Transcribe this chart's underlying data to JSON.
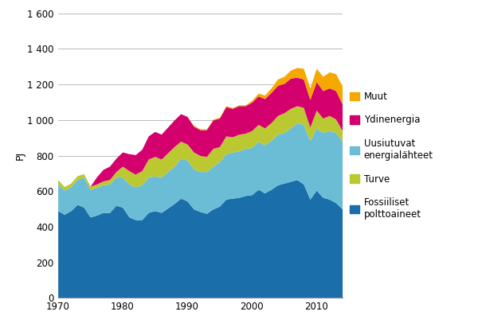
{
  "years": [
    1970,
    1971,
    1972,
    1973,
    1974,
    1975,
    1976,
    1977,
    1978,
    1979,
    1980,
    1981,
    1982,
    1983,
    1984,
    1985,
    1986,
    1987,
    1988,
    1989,
    1990,
    1991,
    1992,
    1993,
    1994,
    1995,
    1996,
    1997,
    1998,
    1999,
    2000,
    2001,
    2002,
    2003,
    2004,
    2005,
    2006,
    2007,
    2008,
    2009,
    2010,
    2011,
    2012,
    2013,
    2014
  ],
  "fossiiliset": [
    490,
    470,
    490,
    525,
    510,
    455,
    465,
    480,
    480,
    520,
    510,
    455,
    440,
    440,
    480,
    490,
    480,
    505,
    530,
    560,
    545,
    500,
    485,
    475,
    500,
    515,
    555,
    560,
    565,
    575,
    580,
    610,
    590,
    610,
    635,
    645,
    655,
    665,
    640,
    555,
    605,
    565,
    555,
    535,
    500
  ],
  "uusiutuvat": [
    150,
    135,
    135,
    140,
    170,
    155,
    155,
    155,
    160,
    160,
    170,
    185,
    185,
    195,
    200,
    195,
    200,
    205,
    210,
    225,
    230,
    225,
    225,
    235,
    240,
    250,
    255,
    260,
    260,
    265,
    265,
    270,
    270,
    275,
    285,
    285,
    300,
    320,
    335,
    330,
    350,
    365,
    385,
    395,
    380
  ],
  "turve": [
    25,
    20,
    20,
    22,
    18,
    18,
    20,
    22,
    25,
    30,
    60,
    75,
    70,
    80,
    100,
    110,
    100,
    105,
    110,
    95,
    90,
    95,
    90,
    85,
    100,
    85,
    100,
    85,
    95,
    85,
    95,
    95,
    95,
    100,
    105,
    110,
    110,
    95,
    95,
    75,
    100,
    80,
    85,
    75,
    60
  ],
  "ydinenergia": [
    0,
    0,
    0,
    0,
    0,
    0,
    40,
    65,
    75,
    75,
    80,
    95,
    110,
    120,
    130,
    140,
    140,
    145,
    150,
    155,
    155,
    145,
    145,
    150,
    160,
    160,
    165,
    160,
    160,
    155,
    160,
    160,
    165,
    170,
    170,
    165,
    170,
    160,
    160,
    155,
    160,
    155,
    155,
    160,
    150
  ],
  "muut": [
    0,
    0,
    0,
    0,
    0,
    0,
    0,
    0,
    0,
    0,
    0,
    0,
    0,
    0,
    0,
    0,
    0,
    0,
    0,
    0,
    0,
    5,
    5,
    5,
    5,
    5,
    5,
    5,
    5,
    5,
    10,
    15,
    20,
    25,
    35,
    40,
    45,
    55,
    60,
    65,
    75,
    80,
    90,
    95,
    100
  ],
  "color_fossiiliset": "#1a6fab",
  "color_uusiutuvat": "#6bbdd6",
  "color_turve": "#bcc832",
  "color_ydinenergia": "#d4006e",
  "color_muut": "#f5a800",
  "ylabel": "PJ",
  "ylim": [
    0,
    1600
  ],
  "yticks": [
    0,
    200,
    400,
    600,
    800,
    1000,
    1200,
    1400,
    1600
  ],
  "ytick_labels": [
    "0",
    "200",
    "400",
    "600",
    "800",
    "1 000",
    "1 200",
    "1 400",
    "1 600"
  ],
  "xlim": [
    1970,
    2014
  ],
  "xticks": [
    1970,
    1980,
    1990,
    2000,
    2010
  ],
  "legend_muut": "Muut",
  "legend_ydin": "Ydinenergia",
  "legend_uusiu": "Uusiutuvat\nenergialähteet",
  "legend_turve": "Turve",
  "legend_fossi": "Fossiiliset\npolttoaineet",
  "background_color": "#ffffff"
}
